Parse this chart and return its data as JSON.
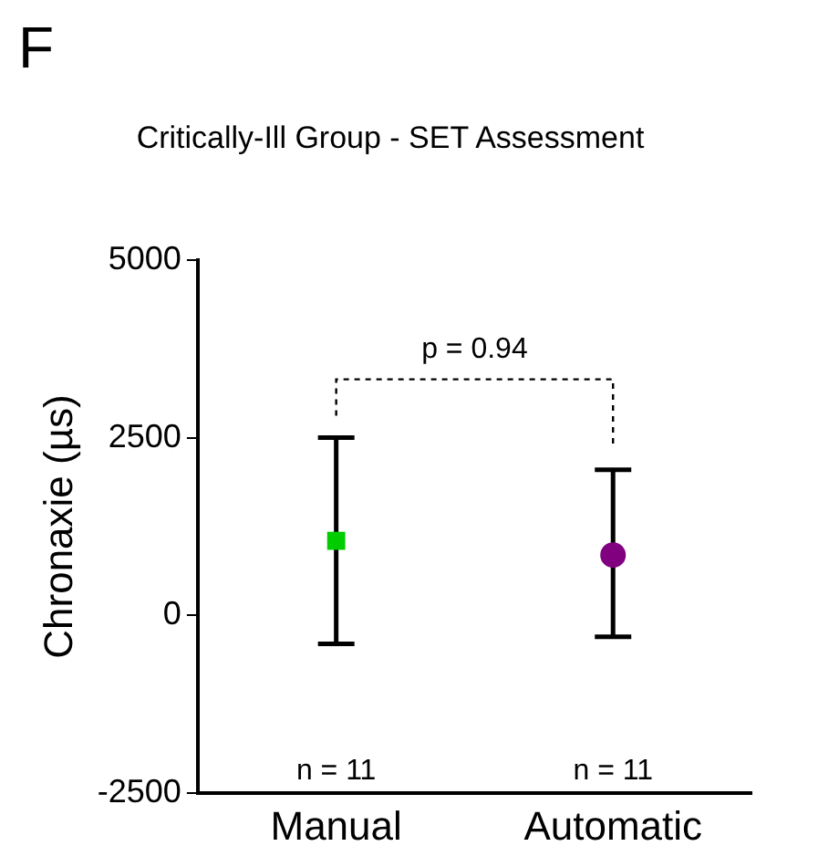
{
  "chart_data": {
    "type": "scatter",
    "title": "Critically-Ill Group - SET Assessment",
    "ylabel": "Chronaxie (µs)",
    "categories": [
      "Manual",
      "Automatic"
    ],
    "series": [
      {
        "color": "#00cc00",
        "marker": "square",
        "values": [
          1050,
          null
        ],
        "errors": [
          [
            -400,
            2500
          ],
          null
        ]
      },
      {
        "color": "#800080",
        "marker": "circle",
        "values": [
          null,
          850
        ],
        "errors": [
          null,
          [
            -300,
            2050
          ]
        ]
      }
    ],
    "ylim": [
      -2500,
      5000
    ],
    "yticks": [
      -2500,
      0,
      2500,
      5000
    ],
    "grid": false,
    "legend": false,
    "annotations": [
      "F",
      "p = 0.94",
      "n = 11",
      "n = 11"
    ]
  }
}
